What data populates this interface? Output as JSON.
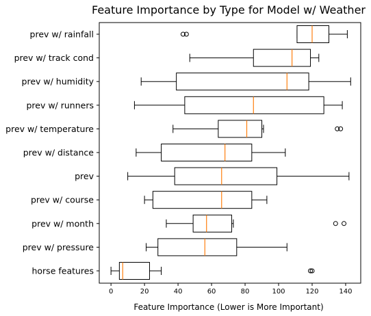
{
  "chart_data": {
    "type": "boxplot",
    "orientation": "horizontal",
    "title": "Feature Importance by Type for Model w/ Weather",
    "xlabel": "Feature Importance (Lower is More Important)",
    "ylabel": "",
    "xlim": [
      -7,
      149
    ],
    "xticks": [
      0,
      20,
      40,
      60,
      80,
      100,
      120,
      140
    ],
    "grid": false,
    "box_color": "#000000",
    "median_color": "#ff7f0e",
    "categories": [
      "prev w/ rainfall",
      "prev w/ track cond",
      "prev w/ humidity",
      "prev w/ runners",
      "prev w/ temperature",
      "prev w/ distance",
      "prev",
      "prev w/ course",
      "prev w/ month",
      "prev w/ pressure",
      "horse features"
    ],
    "boxes": [
      {
        "label": "prev w/ rainfall",
        "whislo": 111,
        "q1": 111,
        "med": 120,
        "q3": 130,
        "whishi": 141,
        "fliers": [
          43,
          45
        ]
      },
      {
        "label": "prev w/ track cond",
        "whislo": 47,
        "q1": 85,
        "med": 108,
        "q3": 119,
        "whishi": 124,
        "fliers": []
      },
      {
        "label": "prev w/ humidity",
        "whislo": 18,
        "q1": 39,
        "med": 105,
        "q3": 118,
        "whishi": 143,
        "fliers": []
      },
      {
        "label": "prev w/ runners",
        "whislo": 14,
        "q1": 44,
        "med": 85,
        "q3": 127,
        "whishi": 138,
        "fliers": []
      },
      {
        "label": "prev w/ temperature",
        "whislo": 37,
        "q1": 64,
        "med": 81,
        "q3": 90,
        "whishi": 91,
        "fliers": [
          135,
          137
        ]
      },
      {
        "label": "prev w/ distance",
        "whislo": 15,
        "q1": 30,
        "med": 68,
        "q3": 84,
        "whishi": 104,
        "fliers": []
      },
      {
        "label": "prev",
        "whislo": 10,
        "q1": 38,
        "med": 66,
        "q3": 99,
        "whishi": 142,
        "fliers": []
      },
      {
        "label": "prev w/ course",
        "whislo": 20,
        "q1": 25,
        "med": 66,
        "q3": 84,
        "whishi": 93,
        "fliers": []
      },
      {
        "label": "prev w/ month",
        "whislo": 33,
        "q1": 49,
        "med": 57,
        "q3": 72,
        "whishi": 73,
        "fliers": [
          134,
          139
        ]
      },
      {
        "label": "prev w/ pressure",
        "whislo": 21,
        "q1": 28,
        "med": 56,
        "q3": 75,
        "whishi": 105,
        "fliers": []
      },
      {
        "label": "horse features",
        "whislo": 0,
        "q1": 5,
        "med": 7,
        "q3": 23,
        "whishi": 30,
        "fliers": [
          119,
          120
        ]
      }
    ]
  }
}
